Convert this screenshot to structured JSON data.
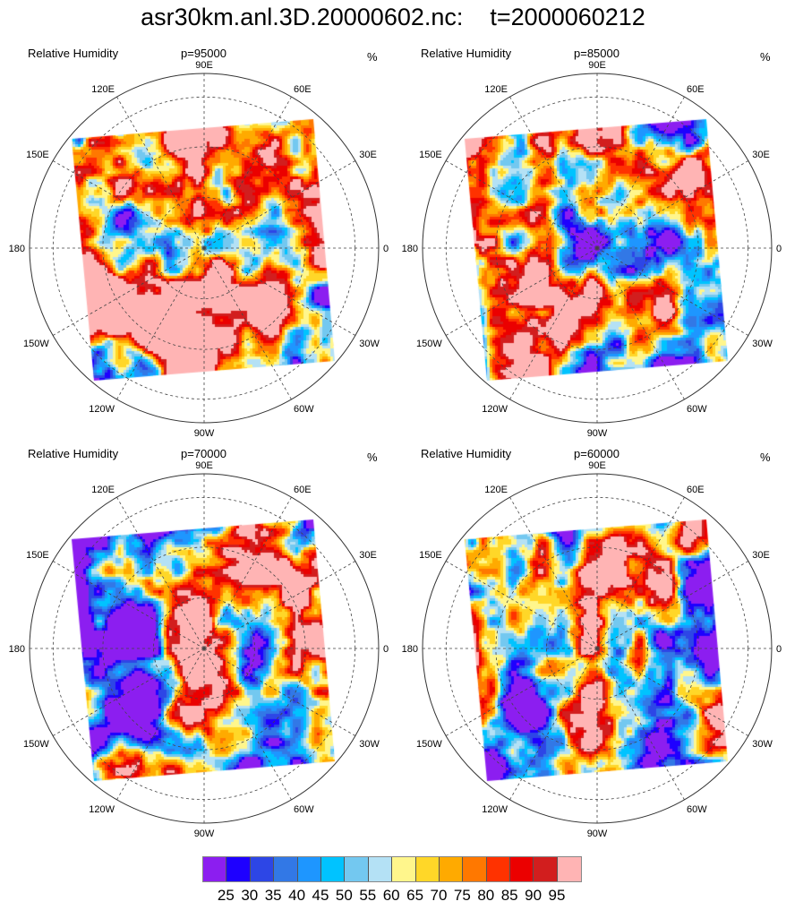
{
  "title": "asr30km.anl.3D.20000602.nc:    t=2000060212",
  "panels": [
    {
      "left": "Relative Humidity",
      "center": "p=95000",
      "right": "%",
      "wetness": 0.78
    },
    {
      "left": "Relative Humidity",
      "center": "p=85000",
      "right": "%",
      "wetness": 0.55
    },
    {
      "left": "Relative Humidity",
      "center": "p=70000",
      "right": "%",
      "wetness": 0.45
    },
    {
      "left": "Relative Humidity",
      "center": "p=60000",
      "right": "%",
      "wetness": 0.4
    }
  ],
  "longitude_labels": [
    {
      "lon": 90,
      "text": "90E"
    },
    {
      "lon": 60,
      "text": "60E"
    },
    {
      "lon": 30,
      "text": "30E"
    },
    {
      "lon": 0,
      "text": "0"
    },
    {
      "lon": -30,
      "text": "30W"
    },
    {
      "lon": -60,
      "text": "60W"
    },
    {
      "lon": -90,
      "text": "90W"
    },
    {
      "lon": -120,
      "text": "120W"
    },
    {
      "lon": -150,
      "text": "150W"
    },
    {
      "lon": 180,
      "text": "180"
    },
    {
      "lon": 150,
      "text": "150E"
    },
    {
      "lon": 120,
      "text": "120E"
    }
  ],
  "chart_data": {
    "type": "heatmap",
    "projection": "north polar stereographic",
    "variable": "Relative Humidity",
    "units": "%",
    "levels": [
      "25",
      "30",
      "35",
      "40",
      "45",
      "50",
      "55",
      "60",
      "65",
      "70",
      "75",
      "80",
      "85",
      "90",
      "95"
    ],
    "colors": [
      "#8c1ef0",
      "#1e00ff",
      "#2d46e6",
      "#3278e6",
      "#1e96ff",
      "#00c3ff",
      "#73c8f0",
      "#b4e1f5",
      "#fff68c",
      "#ffd728",
      "#ffaa00",
      "#ff7800",
      "#ff3200",
      "#eb0000",
      "#d21e1e",
      "#ffb4b4"
    ]
  }
}
